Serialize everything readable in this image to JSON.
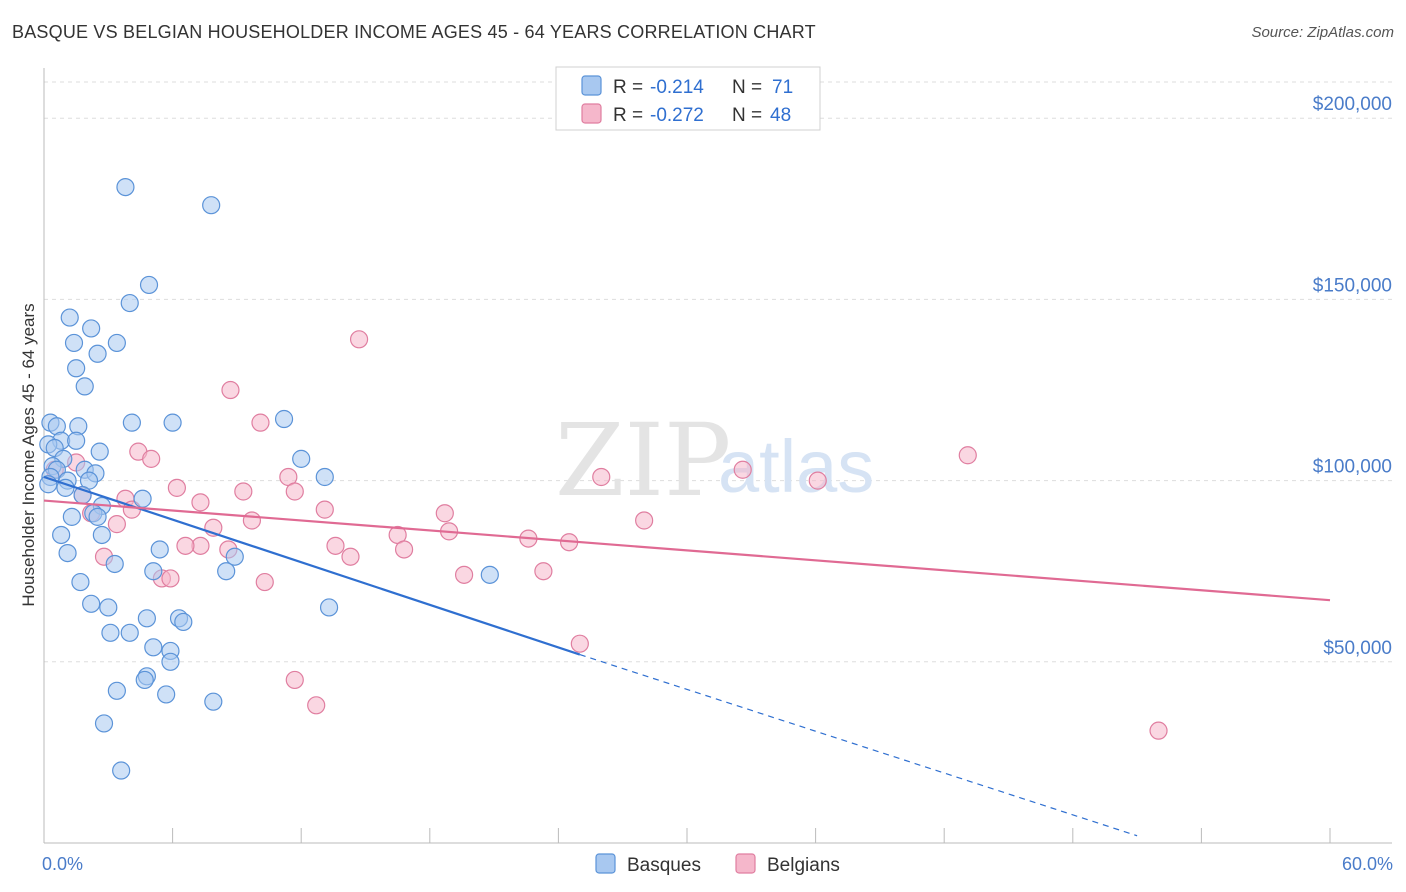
{
  "title": "BASQUE VS BELGIAN HOUSEHOLDER INCOME AGES 45 - 64 YEARS CORRELATION CHART",
  "source": "Source: ZipAtlas.com",
  "watermark": {
    "zip": "ZIP",
    "atlas": "atlas"
  },
  "colors": {
    "basques_fill": "#a8c8f0",
    "basques_stroke": "#5b93d8",
    "basques_line": "#2f6fd0",
    "belgians_fill": "#f5b7cb",
    "belgians_stroke": "#e07ea0",
    "belgians_line": "#e06a93",
    "grid": "#dddddd",
    "tick_text": "#4a7cc9"
  },
  "legend": {
    "rows": [
      {
        "r_label": "R = ",
        "r_value": "-0.214",
        "n_label": "N = ",
        "n_value": "71"
      },
      {
        "r_label": "R = ",
        "r_value": "-0.272",
        "n_label": "N = ",
        "n_value": "48"
      }
    ]
  },
  "chart_data": {
    "type": "scatter",
    "title": "BASQUE VS BELGIAN HOUSEHOLDER INCOME AGES 45 - 64 YEARS CORRELATION CHART",
    "xlabel": "",
    "ylabel": "Householder Income Ages 45 - 64 years",
    "xlim": [
      0,
      60
    ],
    "ylim": [
      0,
      210000
    ],
    "x_tick_labels": [
      "0.0%",
      "60.0%"
    ],
    "y_ticks": [
      {
        "value": 50000,
        "label": "$50,000"
      },
      {
        "value": 100000,
        "label": "$100,000"
      },
      {
        "value": 150000,
        "label": "$150,000"
      },
      {
        "value": 200000,
        "label": "$200,000"
      }
    ],
    "grid": "horizontal dashed",
    "legend_position": "top-center",
    "series": [
      {
        "name": "Basques",
        "trend": {
          "x0": 0,
          "y0": 101000,
          "x1": 25,
          "y1": 52000,
          "dashed_to_x": 51,
          "dashed_to_y": 2000
        },
        "points": [
          [
            3.8,
            181000
          ],
          [
            7.8,
            176000
          ],
          [
            4.9,
            154000
          ],
          [
            4.0,
            149000
          ],
          [
            1.2,
            145000
          ],
          [
            2.2,
            142000
          ],
          [
            1.4,
            138000
          ],
          [
            3.4,
            138000
          ],
          [
            2.5,
            135000
          ],
          [
            1.5,
            131000
          ],
          [
            1.9,
            126000
          ],
          [
            4.1,
            116000
          ],
          [
            6.0,
            116000
          ],
          [
            11.2,
            117000
          ],
          [
            0.3,
            116000
          ],
          [
            0.6,
            115000
          ],
          [
            1.6,
            115000
          ],
          [
            0.8,
            111000
          ],
          [
            1.5,
            111000
          ],
          [
            0.2,
            110000
          ],
          [
            0.5,
            109000
          ],
          [
            2.6,
            108000
          ],
          [
            0.9,
            106000
          ],
          [
            12.0,
            106000
          ],
          [
            0.4,
            104000
          ],
          [
            0.6,
            103000
          ],
          [
            1.9,
            103000
          ],
          [
            2.4,
            102000
          ],
          [
            13.1,
            101000
          ],
          [
            0.3,
            101000
          ],
          [
            1.1,
            100000
          ],
          [
            2.1,
            100000
          ],
          [
            0.2,
            99000
          ],
          [
            1.0,
            98000
          ],
          [
            1.8,
            96000
          ],
          [
            4.6,
            95000
          ],
          [
            2.7,
            93000
          ],
          [
            2.3,
            91000
          ],
          [
            1.3,
            90000
          ],
          [
            2.5,
            90000
          ],
          [
            0.8,
            85000
          ],
          [
            2.7,
            85000
          ],
          [
            5.4,
            81000
          ],
          [
            1.1,
            80000
          ],
          [
            8.9,
            79000
          ],
          [
            3.3,
            77000
          ],
          [
            5.1,
            75000
          ],
          [
            8.5,
            75000
          ],
          [
            20.8,
            74000
          ],
          [
            1.7,
            72000
          ],
          [
            2.2,
            66000
          ],
          [
            3.0,
            65000
          ],
          [
            13.3,
            65000
          ],
          [
            4.8,
            62000
          ],
          [
            6.3,
            62000
          ],
          [
            6.5,
            61000
          ],
          [
            3.1,
            58000
          ],
          [
            4.0,
            58000
          ],
          [
            5.1,
            54000
          ],
          [
            5.9,
            53000
          ],
          [
            5.9,
            50000
          ],
          [
            4.8,
            46000
          ],
          [
            4.7,
            45000
          ],
          [
            3.4,
            42000
          ],
          [
            5.7,
            41000
          ],
          [
            7.9,
            39000
          ],
          [
            2.8,
            33000
          ],
          [
            3.6,
            20000
          ]
        ]
      },
      {
        "name": "Belgians",
        "trend": {
          "x0": 0,
          "y0": 94500,
          "x1": 60,
          "y1": 67000
        },
        "points": [
          [
            14.7,
            139000
          ],
          [
            8.7,
            125000
          ],
          [
            10.1,
            116000
          ],
          [
            43.1,
            107000
          ],
          [
            4.4,
            108000
          ],
          [
            5.0,
            106000
          ],
          [
            1.5,
            105000
          ],
          [
            32.6,
            103000
          ],
          [
            0.5,
            103000
          ],
          [
            11.4,
            101000
          ],
          [
            26.0,
            101000
          ],
          [
            36.1,
            100000
          ],
          [
            6.2,
            98000
          ],
          [
            11.7,
            97000
          ],
          [
            9.3,
            97000
          ],
          [
            1.8,
            96000
          ],
          [
            3.8,
            95000
          ],
          [
            7.3,
            94000
          ],
          [
            13.1,
            92000
          ],
          [
            4.1,
            92000
          ],
          [
            2.2,
            91000
          ],
          [
            18.7,
            91000
          ],
          [
            9.7,
            89000
          ],
          [
            28.0,
            89000
          ],
          [
            3.4,
            88000
          ],
          [
            7.9,
            87000
          ],
          [
            18.9,
            86000
          ],
          [
            16.5,
            85000
          ],
          [
            22.6,
            84000
          ],
          [
            24.5,
            83000
          ],
          [
            13.6,
            82000
          ],
          [
            7.3,
            82000
          ],
          [
            6.6,
            82000
          ],
          [
            16.8,
            81000
          ],
          [
            8.6,
            81000
          ],
          [
            14.3,
            79000
          ],
          [
            2.8,
            79000
          ],
          [
            19.6,
            74000
          ],
          [
            23.3,
            75000
          ],
          [
            5.5,
            73000
          ],
          [
            5.9,
            73000
          ],
          [
            10.3,
            72000
          ],
          [
            25.0,
            55000
          ],
          [
            11.7,
            45000
          ],
          [
            12.7,
            38000
          ],
          [
            52.0,
            31000
          ]
        ]
      }
    ]
  }
}
